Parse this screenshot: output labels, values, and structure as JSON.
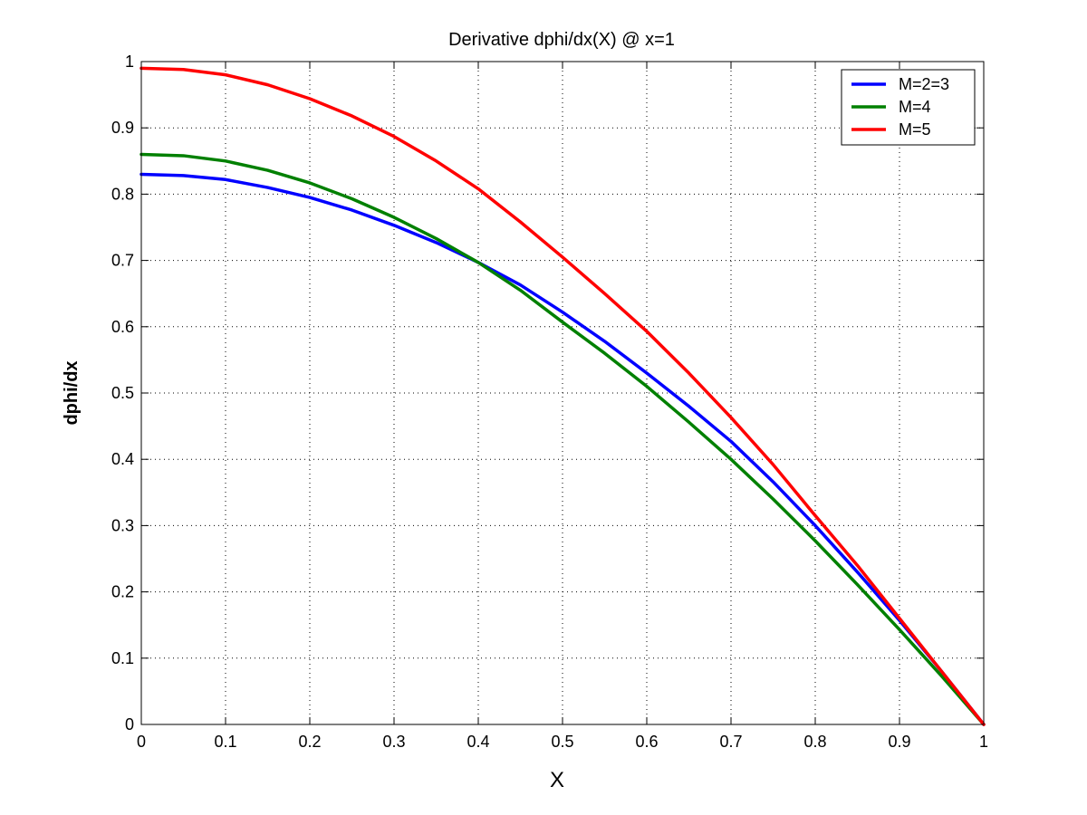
{
  "chart_data": {
    "type": "line",
    "title": "Derivative dphi/dx(X) @ x=1",
    "xlabel": "X",
    "ylabel": "dphi/dx",
    "xlim": [
      0,
      1
    ],
    "ylim": [
      0,
      1
    ],
    "x_ticks": [
      "0",
      "0.1",
      "0.2",
      "0.3",
      "0.4",
      "0.5",
      "0.6",
      "0.7",
      "0.8",
      "0.9",
      "1"
    ],
    "y_ticks": [
      "0",
      "0.1",
      "0.2",
      "0.3",
      "0.4",
      "0.5",
      "0.6",
      "0.7",
      "0.8",
      "0.9",
      "1"
    ],
    "grid": true,
    "legend_position": "top-right",
    "x": [
      0,
      0.05,
      0.1,
      0.15,
      0.2,
      0.25,
      0.3,
      0.35,
      0.4,
      0.45,
      0.5,
      0.55,
      0.6,
      0.65,
      0.7,
      0.75,
      0.8,
      0.85,
      0.9,
      0.95,
      1
    ],
    "series": [
      {
        "name": "M=2=3",
        "color": "#0000ff",
        "values": [
          0.83,
          0.828,
          0.822,
          0.81,
          0.795,
          0.776,
          0.753,
          0.727,
          0.697,
          0.663,
          0.622,
          0.578,
          0.53,
          0.48,
          0.427,
          0.366,
          0.3,
          0.23,
          0.157,
          0.08,
          0.0
        ]
      },
      {
        "name": "M=4",
        "color": "#008000",
        "values": [
          0.86,
          0.858,
          0.85,
          0.836,
          0.817,
          0.793,
          0.765,
          0.733,
          0.697,
          0.655,
          0.607,
          0.56,
          0.51,
          0.456,
          0.4,
          0.34,
          0.277,
          0.211,
          0.143,
          0.073,
          0.0
        ]
      },
      {
        "name": "M=5",
        "color": "#ff0000",
        "values": [
          0.99,
          0.988,
          0.98,
          0.965,
          0.944,
          0.918,
          0.887,
          0.85,
          0.808,
          0.758,
          0.705,
          0.65,
          0.593,
          0.53,
          0.463,
          0.392,
          0.315,
          0.24,
          0.16,
          0.08,
          0.0
        ]
      }
    ]
  }
}
